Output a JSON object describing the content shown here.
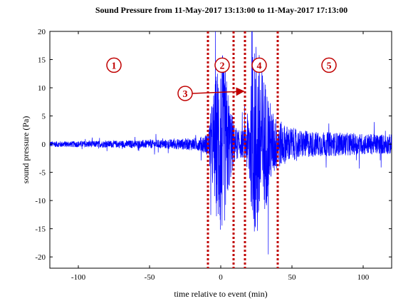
{
  "chart_data": {
    "type": "line",
    "title": "Sound Pressure from 11-May-2017 13:13:00 to 11-May-2017 17:13:00",
    "xlabel": "time relative to event (min)",
    "ylabel": "sound pressure (Pa)",
    "xlim": [
      -120,
      120
    ],
    "ylim": [
      -22,
      20
    ],
    "xticks": [
      -100,
      -50,
      0,
      50,
      100
    ],
    "yticks": [
      -20,
      -15,
      -10,
      -5,
      0,
      5,
      10,
      15,
      20
    ],
    "grid": false,
    "series_color": "#0000ff",
    "annotation_color": "#c00000",
    "envelope": {
      "x": [
        -120,
        -80,
        -40,
        -25,
        -15,
        -9,
        -7,
        -3,
        0,
        3,
        6,
        9,
        12,
        16,
        18,
        21,
        25,
        28,
        32,
        36,
        40,
        45,
        55,
        70,
        90,
        110,
        120
      ],
      "amplitude": [
        0.5,
        0.6,
        0.8,
        1.0,
        1.2,
        2.0,
        6.0,
        13.0,
        18.0,
        14.0,
        8.0,
        4.0,
        2.5,
        2.5,
        4.0,
        10.0,
        20.0,
        15.0,
        11.0,
        6.0,
        4.5,
        3.5,
        2.5,
        2.2,
        2.0,
        1.8,
        1.8
      ]
    },
    "event_lines": [
      -9,
      9,
      17,
      40
    ],
    "regions": [
      {
        "label": "1",
        "x": -75,
        "y": 14
      },
      {
        "label": "2",
        "x": 1,
        "y": 14
      },
      {
        "label": "3",
        "x": -25,
        "y": 9,
        "arrow_to_x": 16
      },
      {
        "label": "4",
        "x": 27,
        "y": 14
      },
      {
        "label": "5",
        "x": 76,
        "y": 14
      }
    ]
  }
}
